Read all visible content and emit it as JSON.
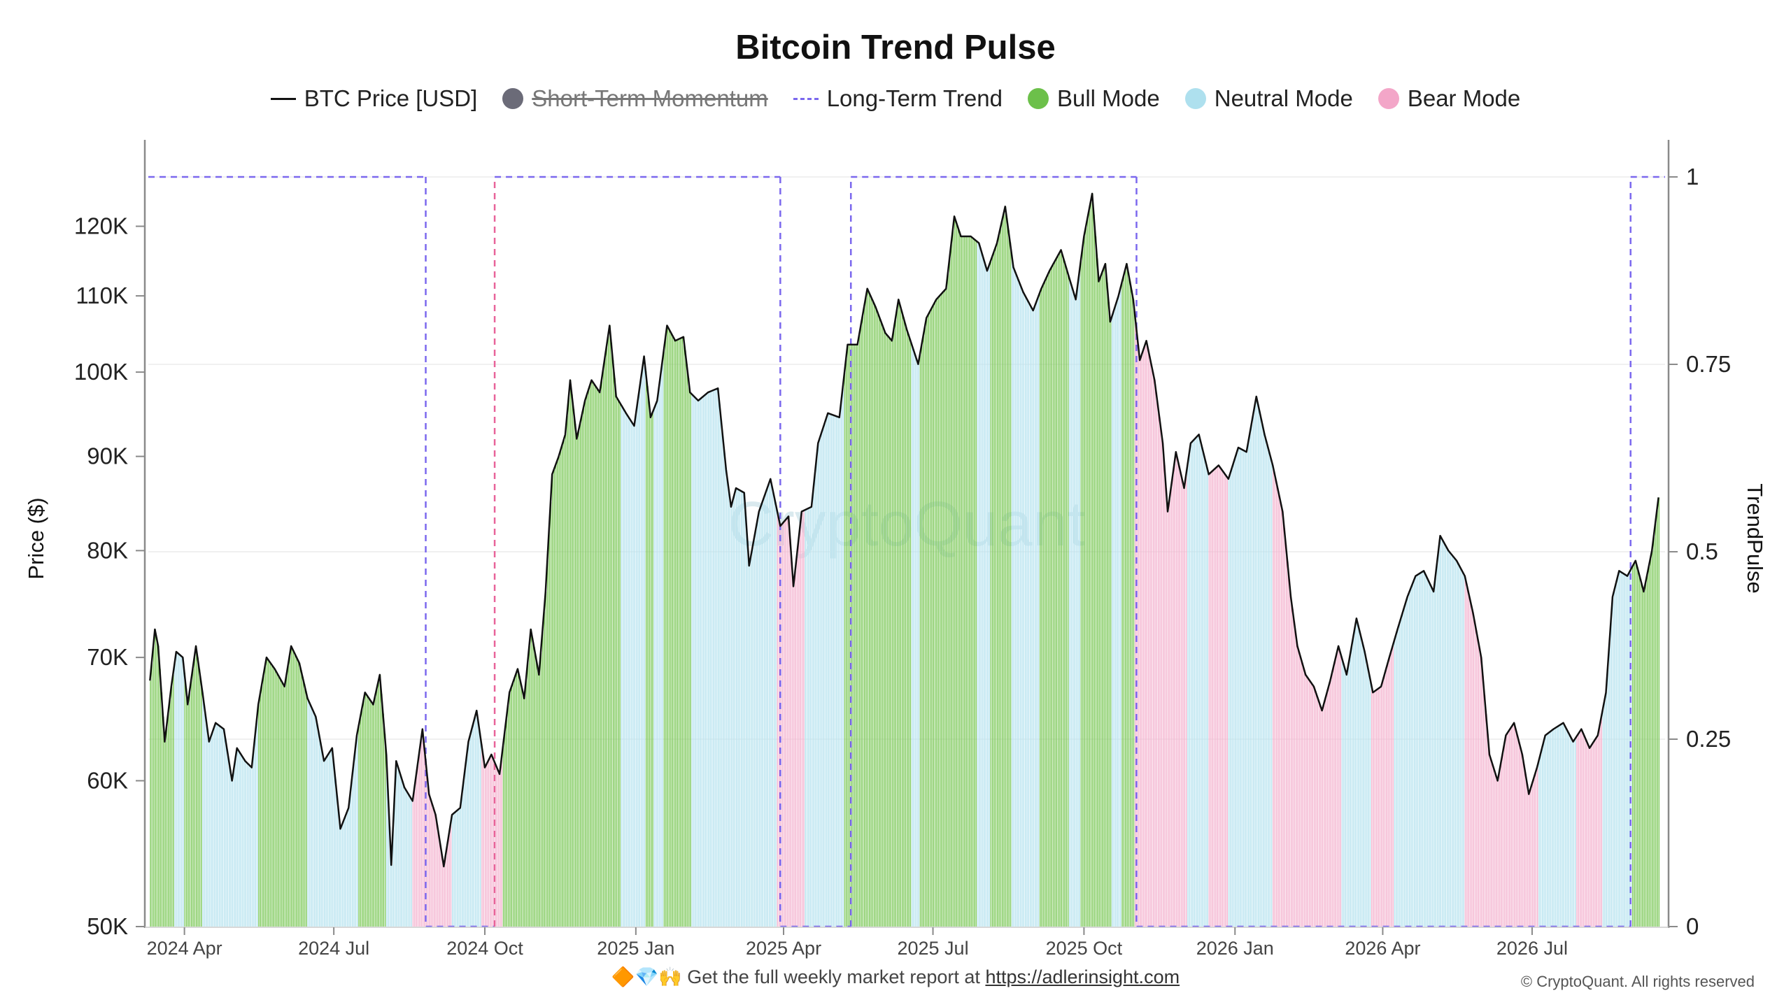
{
  "chart_data": {
    "type": "bar",
    "title": "Bitcoin Trend Pulse",
    "ylabel_left": "Price ($)",
    "ylabel_right": "TrendPulse",
    "y_left_scale": "log",
    "y_left_range": [
      50000,
      130000
    ],
    "y_left_ticks": [
      {
        "value": 50000,
        "label": "50K"
      },
      {
        "value": 60000,
        "label": "60K"
      },
      {
        "value": 70000,
        "label": "70K"
      },
      {
        "value": 80000,
        "label": "80K"
      },
      {
        "value": 90000,
        "label": "90K"
      },
      {
        "value": 100000,
        "label": "100K"
      },
      {
        "value": 110000,
        "label": "110K"
      },
      {
        "value": 120000,
        "label": "120K"
      }
    ],
    "y_right_range": [
      0,
      1
    ],
    "y_right_ticks": [
      {
        "value": 0,
        "label": "0"
      },
      {
        "value": 0.25,
        "label": "0.25"
      },
      {
        "value": 0.5,
        "label": "0.5"
      },
      {
        "value": 0.75,
        "label": "0.75"
      },
      {
        "value": 1,
        "label": "1"
      }
    ],
    "x_range": [
      "2024-03-10",
      "2026-09-20"
    ],
    "x_ticks": [
      {
        "date": "2024-04-01",
        "label": "2024 Apr"
      },
      {
        "date": "2024-07-01",
        "label": "2024 Jul"
      },
      {
        "date": "2024-10-01",
        "label": "2024 Oct"
      },
      {
        "date": "2025-01-01",
        "label": "2025 Jan"
      },
      {
        "date": "2025-04-01",
        "label": "2025 Apr"
      },
      {
        "date": "2025-07-01",
        "label": "2025 Jul"
      },
      {
        "date": "2025-10-01",
        "label": "2025 Oct"
      },
      {
        "date": "2026-01-01",
        "label": "2026 Jan"
      },
      {
        "date": "2026-04-01",
        "label": "2026 Apr"
      },
      {
        "date": "2026-07-01",
        "label": "2026 Jul"
      }
    ],
    "legend": [
      {
        "name": "BTC Price [USD]",
        "symbol": "line",
        "hidden": false
      },
      {
        "name": "Short-Term Momentum",
        "symbol": "dot",
        "hidden": true
      },
      {
        "name": "Long-Term Trend",
        "symbol": "dash",
        "hidden": false
      },
      {
        "name": "Bull Mode",
        "symbol": "dot",
        "hidden": false
      },
      {
        "name": "Neutral Mode",
        "symbol": "dot",
        "hidden": false
      },
      {
        "name": "Bear Mode",
        "symbol": "dot",
        "hidden": false
      }
    ],
    "colors": {
      "price": "#111111",
      "momentum": "#6b6b78",
      "trend": "#7b68ee",
      "trend_bear": "#e8649a",
      "bull": "#6cc04a",
      "neutral": "#aee0ee",
      "bear": "#f3a6c8",
      "bull_fill": "#7dc95a",
      "neutral_fill": "#b7e3ef",
      "bear_fill": "#f4b3cf"
    },
    "price_series": [
      [
        "2024-03-11",
        68000
      ],
      [
        "2024-03-14",
        72500
      ],
      [
        "2024-03-16",
        71000
      ],
      [
        "2024-03-20",
        63000
      ],
      [
        "2024-03-24",
        67500
      ],
      [
        "2024-03-27",
        70500
      ],
      [
        "2024-03-31",
        70000
      ],
      [
        "2024-04-03",
        66000
      ],
      [
        "2024-04-08",
        71000
      ],
      [
        "2024-04-12",
        67000
      ],
      [
        "2024-04-16",
        63000
      ],
      [
        "2024-04-20",
        64500
      ],
      [
        "2024-04-25",
        64000
      ],
      [
        "2024-04-30",
        60000
      ],
      [
        "2024-05-03",
        62500
      ],
      [
        "2024-05-08",
        61500
      ],
      [
        "2024-05-12",
        61000
      ],
      [
        "2024-05-16",
        66000
      ],
      [
        "2024-05-21",
        70000
      ],
      [
        "2024-05-26",
        69000
      ],
      [
        "2024-06-01",
        67500
      ],
      [
        "2024-06-05",
        71000
      ],
      [
        "2024-06-10",
        69500
      ],
      [
        "2024-06-15",
        66500
      ],
      [
        "2024-06-20",
        65000
      ],
      [
        "2024-06-25",
        61500
      ],
      [
        "2024-06-30",
        62500
      ],
      [
        "2024-07-05",
        56500
      ],
      [
        "2024-07-10",
        58000
      ],
      [
        "2024-07-15",
        63500
      ],
      [
        "2024-07-20",
        67000
      ],
      [
        "2024-07-25",
        66000
      ],
      [
        "2024-07-29",
        68500
      ],
      [
        "2024-08-02",
        62000
      ],
      [
        "2024-08-05",
        54000
      ],
      [
        "2024-08-08",
        61500
      ],
      [
        "2024-08-13",
        59500
      ],
      [
        "2024-08-18",
        58500
      ],
      [
        "2024-08-24",
        64000
      ],
      [
        "2024-08-28",
        59000
      ],
      [
        "2024-09-01",
        57500
      ],
      [
        "2024-09-06",
        53900
      ],
      [
        "2024-09-11",
        57500
      ],
      [
        "2024-09-16",
        58000
      ],
      [
        "2024-09-21",
        63000
      ],
      [
        "2024-09-26",
        65500
      ],
      [
        "2024-10-01",
        61000
      ],
      [
        "2024-10-05",
        62000
      ],
      [
        "2024-10-10",
        60500
      ],
      [
        "2024-10-16",
        67000
      ],
      [
        "2024-10-21",
        69000
      ],
      [
        "2024-10-25",
        66500
      ],
      [
        "2024-10-29",
        72500
      ],
      [
        "2024-11-03",
        68500
      ],
      [
        "2024-11-07",
        76000
      ],
      [
        "2024-11-11",
        88000
      ],
      [
        "2024-11-15",
        90000
      ],
      [
        "2024-11-19",
        92500
      ],
      [
        "2024-11-22",
        99000
      ],
      [
        "2024-11-26",
        92000
      ],
      [
        "2024-12-01",
        96500
      ],
      [
        "2024-12-05",
        99000
      ],
      [
        "2024-12-10",
        97500
      ],
      [
        "2024-12-16",
        106000
      ],
      [
        "2024-12-20",
        97000
      ],
      [
        "2024-12-26",
        95000
      ],
      [
        "2024-12-31",
        93500
      ],
      [
        "2025-01-06",
        102000
      ],
      [
        "2025-01-10",
        94500
      ],
      [
        "2025-01-14",
        96500
      ],
      [
        "2025-01-20",
        106000
      ],
      [
        "2025-01-25",
        104000
      ],
      [
        "2025-01-30",
        104500
      ],
      [
        "2025-02-03",
        97500
      ],
      [
        "2025-02-08",
        96500
      ],
      [
        "2025-02-14",
        97500
      ],
      [
        "2025-02-20",
        98000
      ],
      [
        "2025-02-25",
        88500
      ],
      [
        "2025-02-28",
        84500
      ],
      [
        "2025-03-03",
        86500
      ],
      [
        "2025-03-08",
        86000
      ],
      [
        "2025-03-11",
        78500
      ],
      [
        "2025-03-17",
        84000
      ],
      [
        "2025-03-24",
        87500
      ],
      [
        "2025-03-30",
        82500
      ],
      [
        "2025-04-04",
        83500
      ],
      [
        "2025-04-07",
        76500
      ],
      [
        "2025-04-12",
        84000
      ],
      [
        "2025-04-18",
        84500
      ],
      [
        "2025-04-22",
        91500
      ],
      [
        "2025-04-28",
        95000
      ],
      [
        "2025-05-05",
        94500
      ],
      [
        "2025-05-10",
        103500
      ],
      [
        "2025-05-16",
        103500
      ],
      [
        "2025-05-22",
        111000
      ],
      [
        "2025-05-27",
        108500
      ],
      [
        "2025-06-02",
        105000
      ],
      [
        "2025-06-06",
        104000
      ],
      [
        "2025-06-10",
        109500
      ],
      [
        "2025-06-15",
        105500
      ],
      [
        "2025-06-22",
        101000
      ],
      [
        "2025-06-27",
        107000
      ],
      [
        "2025-07-03",
        109500
      ],
      [
        "2025-07-09",
        111000
      ],
      [
        "2025-07-14",
        121500
      ],
      [
        "2025-07-18",
        118500
      ],
      [
        "2025-07-24",
        118500
      ],
      [
        "2025-07-29",
        117500
      ],
      [
        "2025-08-03",
        113500
      ],
      [
        "2025-08-09",
        117500
      ],
      [
        "2025-08-14",
        123000
      ],
      [
        "2025-08-19",
        114000
      ],
      [
        "2025-08-25",
        110500
      ],
      [
        "2025-08-31",
        108000
      ],
      [
        "2025-09-05",
        111000
      ],
      [
        "2025-09-10",
        113500
      ],
      [
        "2025-09-17",
        116500
      ],
      [
        "2025-09-22",
        112500
      ],
      [
        "2025-09-26",
        109500
      ],
      [
        "2025-10-01",
        118500
      ],
      [
        "2025-10-06",
        125000
      ],
      [
        "2025-10-10",
        112000
      ],
      [
        "2025-10-14",
        114500
      ],
      [
        "2025-10-17",
        106500
      ],
      [
        "2025-10-22",
        110000
      ],
      [
        "2025-10-27",
        114500
      ],
      [
        "2025-10-31",
        109500
      ],
      [
        "2025-11-04",
        101500
      ],
      [
        "2025-11-08",
        104000
      ],
      [
        "2025-11-13",
        99000
      ],
      [
        "2025-11-18",
        91500
      ],
      [
        "2025-11-21",
        84000
      ],
      [
        "2025-11-26",
        90500
      ],
      [
        "2025-12-01",
        86500
      ],
      [
        "2025-12-05",
        91500
      ],
      [
        "2025-12-10",
        92500
      ],
      [
        "2025-12-16",
        88000
      ],
      [
        "2025-12-22",
        89000
      ],
      [
        "2025-12-28",
        87500
      ],
      [
        "2026-01-03",
        91000
      ],
      [
        "2026-01-08",
        90500
      ],
      [
        "2026-01-14",
        97000
      ],
      [
        "2026-01-19",
        92500
      ],
      [
        "2026-01-24",
        89000
      ],
      [
        "2026-01-30",
        84000
      ],
      [
        "2026-02-04",
        75500
      ],
      [
        "2026-02-08",
        71000
      ],
      [
        "2026-02-13",
        68500
      ],
      [
        "2026-02-18",
        67500
      ],
      [
        "2026-02-23",
        65500
      ],
      [
        "2026-02-28",
        68000
      ],
      [
        "2026-03-05",
        71000
      ],
      [
        "2026-03-10",
        68500
      ],
      [
        "2026-03-16",
        73500
      ],
      [
        "2026-03-21",
        70500
      ],
      [
        "2026-03-26",
        67000
      ],
      [
        "2026-03-31",
        67500
      ],
      [
        "2026-04-05",
        70000
      ],
      [
        "2026-04-10",
        72500
      ],
      [
        "2026-04-16",
        75500
      ],
      [
        "2026-04-21",
        77500
      ],
      [
        "2026-04-26",
        78000
      ],
      [
        "2026-05-02",
        76000
      ],
      [
        "2026-05-06",
        81500
      ],
      [
        "2026-05-11",
        80000
      ],
      [
        "2026-05-16",
        79000
      ],
      [
        "2026-05-21",
        77500
      ],
      [
        "2026-05-26",
        74000
      ],
      [
        "2026-05-31",
        70000
      ],
      [
        "2026-06-05",
        62000
      ],
      [
        "2026-06-10",
        60000
      ],
      [
        "2026-06-15",
        63500
      ],
      [
        "2026-06-20",
        64500
      ],
      [
        "2026-06-25",
        62000
      ],
      [
        "2026-06-29",
        59000
      ],
      [
        "2026-07-04",
        61000
      ],
      [
        "2026-07-09",
        63500
      ],
      [
        "2026-07-14",
        64000
      ],
      [
        "2026-07-20",
        64500
      ],
      [
        "2026-07-26",
        63000
      ],
      [
        "2026-07-31",
        64000
      ],
      [
        "2026-08-05",
        62500
      ],
      [
        "2026-08-10",
        63500
      ],
      [
        "2026-08-15",
        67000
      ],
      [
        "2026-08-19",
        75500
      ],
      [
        "2026-08-23",
        78000
      ],
      [
        "2026-08-28",
        77500
      ],
      [
        "2026-09-02",
        79000
      ],
      [
        "2026-09-07",
        76000
      ],
      [
        "2026-09-12",
        80000
      ],
      [
        "2026-09-16",
        85500
      ]
    ],
    "mode_segments": [
      {
        "start": "2024-03-10",
        "end": "2024-03-26",
        "mode": "bull"
      },
      {
        "start": "2024-03-26",
        "end": "2024-04-01",
        "mode": "neutral"
      },
      {
        "start": "2024-04-01",
        "end": "2024-04-12",
        "mode": "bull"
      },
      {
        "start": "2024-04-12",
        "end": "2024-05-16",
        "mode": "neutral"
      },
      {
        "start": "2024-05-16",
        "end": "2024-06-15",
        "mode": "bull"
      },
      {
        "start": "2024-06-15",
        "end": "2024-07-16",
        "mode": "neutral"
      },
      {
        "start": "2024-07-16",
        "end": "2024-08-02",
        "mode": "bull"
      },
      {
        "start": "2024-08-02",
        "end": "2024-08-18",
        "mode": "neutral"
      },
      {
        "start": "2024-08-18",
        "end": "2024-09-11",
        "mode": "bear"
      },
      {
        "start": "2024-09-11",
        "end": "2024-09-29",
        "mode": "neutral"
      },
      {
        "start": "2024-09-29",
        "end": "2024-10-12",
        "mode": "bear"
      },
      {
        "start": "2024-10-12",
        "end": "2024-12-23",
        "mode": "bull"
      },
      {
        "start": "2024-12-23",
        "end": "2025-01-07",
        "mode": "neutral"
      },
      {
        "start": "2025-01-07",
        "end": "2025-01-12",
        "mode": "bull"
      },
      {
        "start": "2025-01-12",
        "end": "2025-01-18",
        "mode": "neutral"
      },
      {
        "start": "2025-01-18",
        "end": "2025-02-04",
        "mode": "bull"
      },
      {
        "start": "2025-02-04",
        "end": "2025-03-28",
        "mode": "neutral"
      },
      {
        "start": "2025-03-28",
        "end": "2025-04-14",
        "mode": "bear"
      },
      {
        "start": "2025-04-14",
        "end": "2025-05-08",
        "mode": "neutral"
      },
      {
        "start": "2025-05-08",
        "end": "2025-06-18",
        "mode": "bull"
      },
      {
        "start": "2025-06-18",
        "end": "2025-06-23",
        "mode": "neutral"
      },
      {
        "start": "2025-06-23",
        "end": "2025-07-28",
        "mode": "bull"
      },
      {
        "start": "2025-07-28",
        "end": "2025-08-05",
        "mode": "neutral"
      },
      {
        "start": "2025-08-05",
        "end": "2025-08-18",
        "mode": "bull"
      },
      {
        "start": "2025-08-18",
        "end": "2025-09-04",
        "mode": "neutral"
      },
      {
        "start": "2025-09-04",
        "end": "2025-09-22",
        "mode": "bull"
      },
      {
        "start": "2025-09-22",
        "end": "2025-09-29",
        "mode": "neutral"
      },
      {
        "start": "2025-09-29",
        "end": "2025-10-18",
        "mode": "bull"
      },
      {
        "start": "2025-10-18",
        "end": "2025-10-24",
        "mode": "neutral"
      },
      {
        "start": "2025-10-24",
        "end": "2025-11-01",
        "mode": "bull"
      },
      {
        "start": "2025-11-01",
        "end": "2025-12-03",
        "mode": "bear"
      },
      {
        "start": "2025-12-03",
        "end": "2025-12-16",
        "mode": "neutral"
      },
      {
        "start": "2025-12-16",
        "end": "2025-12-28",
        "mode": "bear"
      },
      {
        "start": "2025-12-28",
        "end": "2026-01-24",
        "mode": "neutral"
      },
      {
        "start": "2026-01-24",
        "end": "2026-03-07",
        "mode": "bear"
      },
      {
        "start": "2026-03-07",
        "end": "2026-03-25",
        "mode": "neutral"
      },
      {
        "start": "2026-03-25",
        "end": "2026-04-08",
        "mode": "bear"
      },
      {
        "start": "2026-04-08",
        "end": "2026-05-21",
        "mode": "neutral"
      },
      {
        "start": "2026-05-21",
        "end": "2026-07-05",
        "mode": "bear"
      },
      {
        "start": "2026-07-05",
        "end": "2026-07-28",
        "mode": "neutral"
      },
      {
        "start": "2026-07-28",
        "end": "2026-08-13",
        "mode": "bear"
      },
      {
        "start": "2026-08-13",
        "end": "2026-08-31",
        "mode": "neutral"
      },
      {
        "start": "2026-08-31",
        "end": "2026-09-20",
        "mode": "bull"
      }
    ],
    "trend_series": [
      [
        "2024-03-10",
        1
      ],
      [
        "2024-08-26",
        1
      ],
      [
        "2024-08-26",
        0
      ],
      [
        "2024-10-07",
        0
      ],
      [
        "2024-10-07",
        1
      ],
      [
        "2025-03-30",
        1
      ],
      [
        "2025-03-30",
        0
      ],
      [
        "2025-05-12",
        0
      ],
      [
        "2025-05-12",
        1
      ],
      [
        "2025-11-02",
        1
      ],
      [
        "2025-11-02",
        0
      ],
      [
        "2026-08-30",
        0
      ],
      [
        "2026-08-30",
        1
      ],
      [
        "2026-09-20",
        1
      ]
    ]
  },
  "footer": {
    "text": "🔶💎🙌 Get the full weekly market report at ",
    "link": "https://adlerinsight.com"
  },
  "copyright": "© CryptoQuant. All rights reserved",
  "watermark": "CryptoQuant"
}
